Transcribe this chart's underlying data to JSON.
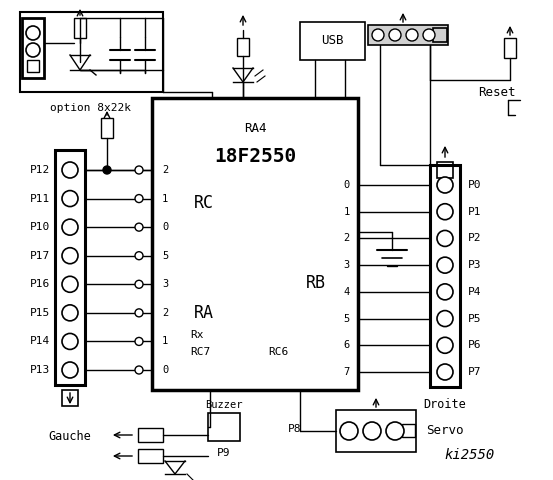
{
  "title": "ki2550",
  "bg_color": "#ffffff",
  "line_color": "#000000",
  "chip_label": "18F2550",
  "chip_label_ra4": "RA4",
  "rc_label": "RC",
  "ra_label": "RA",
  "rb_label": "RB",
  "rc_left_pins": [
    "2",
    "1",
    "0",
    "5",
    "3",
    "2",
    "1",
    "0"
  ],
  "rb_right_pins": [
    "0",
    "1",
    "2",
    "3",
    "4",
    "5",
    "6",
    "7"
  ],
  "left_labels": [
    "P12",
    "P11",
    "P10",
    "P17",
    "P16",
    "P15",
    "P14",
    "P13"
  ],
  "right_labels": [
    "P0",
    "P1",
    "P2",
    "P3",
    "P4",
    "P5",
    "P6",
    "P7"
  ],
  "rx_label": "Rx",
  "rc7_label": "RC7",
  "rc6_label": "RC6",
  "usb_label": "USB",
  "reset_label": "Reset",
  "option_label": "option 8x22k",
  "gauche_label": "Gauche",
  "droite_label": "Droite",
  "buzzer_label": "Buzzer",
  "p9_label": "P9",
  "p8_label": "P8",
  "servo_label": "Servo"
}
